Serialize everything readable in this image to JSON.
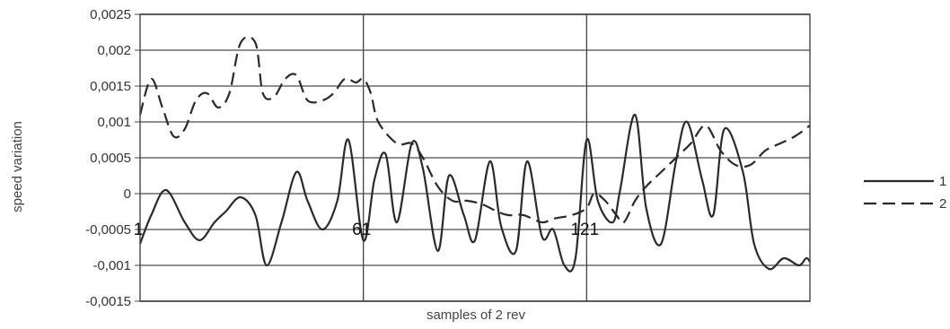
{
  "chart_data": {
    "type": "line",
    "xlabel": "samples of 2 rev",
    "ylabel": "speed variation",
    "ylim": [
      -0.0015,
      0.0025
    ],
    "xlim": [
      1,
      181
    ],
    "y_ticks": [
      "-0,0015",
      "-0,001",
      "-0,0005",
      "0",
      "0,0005",
      "0,001",
      "0,0015",
      "0,002",
      "0,0025"
    ],
    "x_markers": [
      {
        "x": 61,
        "label": "61"
      },
      {
        "x": 121,
        "label": "121"
      }
    ],
    "start_label": {
      "x": 1,
      "label": "1"
    },
    "grid": "horizontal major lines, vertical lines at 61 and 121",
    "legend_position": "right",
    "series": [
      {
        "name": "1",
        "style": "solid",
        "color": "#2a2a2a",
        "x": [
          1,
          4,
          8,
          13,
          17,
          21,
          24,
          28,
          32,
          35,
          39,
          43,
          46,
          50,
          54,
          57,
          61,
          64,
          67,
          70,
          74,
          77,
          81,
          84,
          88,
          91,
          95,
          98,
          102,
          105,
          109,
          112,
          115,
          118,
          121,
          124,
          128,
          130,
          134,
          137,
          141,
          145,
          148,
          152,
          155,
          158,
          163,
          166,
          170,
          174,
          178,
          180,
          181
        ],
        "y": [
          -0.0007,
          -0.0003,
          5e-05,
          -0.0004,
          -0.00065,
          -0.0004,
          -0.00025,
          -5e-05,
          -0.0003,
          -0.001,
          -0.0004,
          0.0003,
          -0.0001,
          -0.0005,
          -0.0001,
          0.00075,
          -0.00065,
          0.0002,
          0.00055,
          -0.0004,
          0.0007,
          0.00035,
          -0.0008,
          0.00025,
          -0.0003,
          -0.00065,
          0.00045,
          -0.00045,
          -0.0008,
          0.00045,
          -0.0006,
          -0.0005,
          -0.001,
          -0.0009,
          0.00075,
          -0.0001,
          -0.0004,
          5e-05,
          0.0011,
          -0.0002,
          -0.0007,
          0.00045,
          0.001,
          0.0002,
          -0.0003,
          0.0009,
          0.0003,
          -0.0007,
          -0.00105,
          -0.0009,
          -0.001,
          -0.0009,
          -0.00095
        ]
      },
      {
        "name": "2",
        "style": "dashed",
        "color": "#2a2a2a",
        "x": [
          1,
          4,
          7,
          10,
          13,
          16,
          19,
          22,
          25,
          28,
          32,
          34,
          37,
          40,
          43,
          46,
          50,
          53,
          56,
          59,
          61,
          63,
          65,
          70,
          74,
          77,
          81,
          85,
          89,
          93,
          97,
          100,
          104,
          109,
          112,
          117,
          121,
          123,
          126,
          129,
          131,
          134,
          137,
          141,
          145,
          149,
          153,
          157,
          161,
          165,
          169,
          173,
          177,
          181
        ],
        "y": [
          0.0011,
          0.0016,
          0.0012,
          0.0008,
          0.0009,
          0.0013,
          0.0014,
          0.0012,
          0.0014,
          0.0021,
          0.0021,
          0.0014,
          0.00135,
          0.0016,
          0.00165,
          0.0013,
          0.0013,
          0.0014,
          0.0016,
          0.00155,
          0.0016,
          0.0014,
          0.001,
          0.0007,
          0.0007,
          0.0005,
          0.0001,
          -0.0001,
          -0.0001,
          -0.00015,
          -0.00025,
          -0.0003,
          -0.0003,
          -0.0004,
          -0.00035,
          -0.0003,
          -0.0002,
          0.0,
          -0.0001,
          -0.0003,
          -0.0004,
          -0.0001,
          0.0001,
          0.0003,
          0.0005,
          0.0007,
          0.00095,
          0.0006,
          0.0004,
          0.0004,
          0.0006,
          0.0007,
          0.0008,
          0.00095
        ]
      }
    ]
  }
}
